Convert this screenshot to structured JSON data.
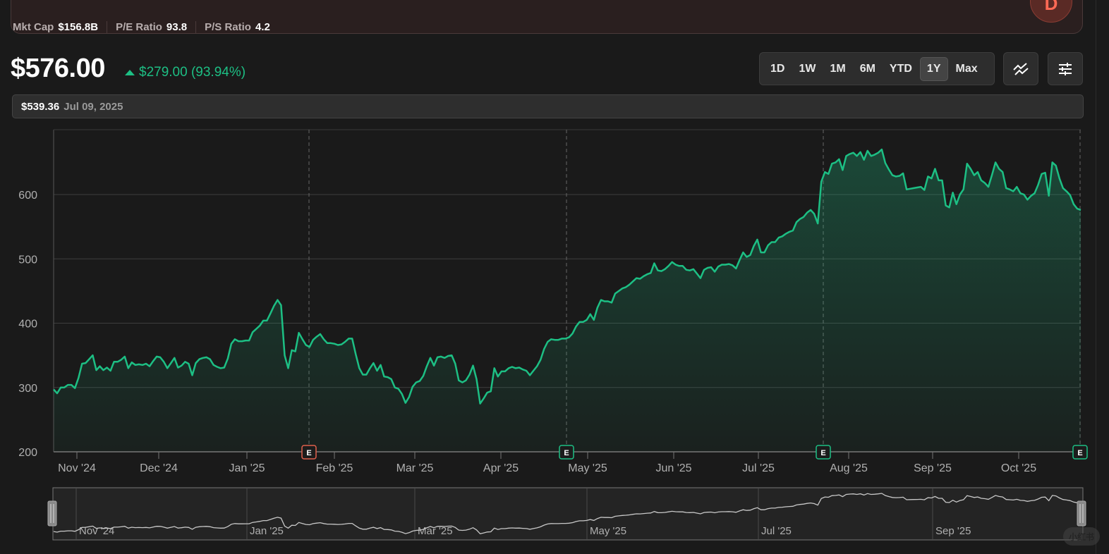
{
  "stats": {
    "items": [
      {
        "label": "Mkt Cap",
        "value": "$156.8B"
      },
      {
        "label": "P/E Ratio",
        "value": "93.8"
      },
      {
        "label": "P/S Ratio",
        "value": "4.2"
      }
    ],
    "rating_letter": "D",
    "rating_color": "#ff6a55"
  },
  "quote": {
    "price": "$576.00",
    "change": "$279.00 (93.94%)",
    "direction": "up",
    "up_color": "#1dbf84"
  },
  "range": {
    "options": [
      "1D",
      "1W",
      "1M",
      "6M",
      "YTD",
      "1Y",
      "Max"
    ],
    "selected": "1Y"
  },
  "toolbar": {
    "compare_icon": "trend-lines-icon",
    "settings_icon": "sliders-icon"
  },
  "hover": {
    "price": "$539.36",
    "date": "Jul 09, 2025"
  },
  "chart_data": {
    "type": "area",
    "title": "",
    "xlabel": "",
    "ylabel": "",
    "ylim": [
      200,
      700
    ],
    "yticks": [
      200,
      300,
      400,
      500,
      600
    ],
    "xticks": [
      "Nov '24",
      "Dec '24",
      "Jan '25",
      "Feb '25",
      "Mar '25",
      "Apr '25",
      "May '25",
      "Jun '25",
      "Jul '25",
      "Aug '25",
      "Sep '25",
      "Oct '25"
    ],
    "grid": true,
    "line_color": "#1dbf84",
    "earnings_markers": [
      {
        "label": "E",
        "date": "late Jan '25",
        "result": "miss",
        "color": "#e0604c"
      },
      {
        "label": "E",
        "date": "late Apr '25",
        "result": "beat",
        "color": "#1dbf84"
      },
      {
        "label": "E",
        "date": "late Jul '25",
        "result": "beat",
        "color": "#1dbf84"
      },
      {
        "label": "E",
        "date": "late Oct '25",
        "result": "beat",
        "color": "#1dbf84"
      }
    ],
    "series": [
      {
        "name": "Price",
        "values": [
          297,
          291,
          300,
          300,
          304,
          304,
          299,
          315,
          337,
          338,
          344,
          350,
          327,
          333,
          327,
          331,
          326,
          340,
          340,
          343,
          348,
          330,
          339,
          335,
          336,
          335,
          337,
          333,
          341,
          348,
          347,
          340,
          330,
          338,
          346,
          331,
          334,
          340,
          337,
          319,
          338,
          344,
          346,
          347,
          344,
          335,
          332,
          330,
          331,
          345,
          368,
          375,
          372,
          372,
          373,
          373,
          386,
          391,
          396,
          404,
          404,
          415,
          427,
          436,
          428,
          350,
          330,
          358,
          356,
          385,
          375,
          366,
          363,
          374,
          379,
          383,
          375,
          369,
          369,
          368,
          366,
          367,
          371,
          376,
          376,
          352,
          330,
          320,
          320,
          330,
          338,
          326,
          335,
          317,
          316,
          313,
          300,
          298,
          290,
          276,
          285,
          301,
          308,
          310,
          318,
          333,
          346,
          334,
          347,
          348,
          346,
          349,
          350,
          337,
          311,
          308,
          311,
          320,
          334,
          313,
          275,
          283,
          292,
          294,
          330,
          317,
          325,
          325,
          330,
          332,
          330,
          331,
          328,
          326,
          319,
          326,
          333,
          343,
          360,
          371,
          375,
          374,
          374,
          376,
          376,
          378,
          384,
          395,
          402,
          402,
          405,
          414,
          405,
          424,
          436,
          434,
          434,
          432,
          446,
          450,
          454,
          456,
          460,
          465,
          470,
          469,
          473,
          476,
          478,
          493,
          482,
          481,
          484,
          489,
          495,
          491,
          489,
          489,
          483,
          482,
          484,
          477,
          470,
          483,
          486,
          487,
          480,
          488,
          491,
          491,
          492,
          490,
          485,
          498,
          510,
          503,
          506,
          520,
          530,
          510,
          510,
          521,
          526,
          526,
          533,
          535,
          539,
          542,
          544,
          557,
          562,
          565,
          572,
          576,
          570,
          555,
          620,
          635,
          632,
          648,
          650,
          655,
          638,
          660,
          663,
          665,
          660,
          666,
          654,
          668,
          660,
          662,
          665,
          670,
          649,
          639,
          630,
          628,
          629,
          633,
          608,
          609,
          610,
          611,
          612,
          607,
          628,
          625,
          640,
          622,
          622,
          583,
          580,
          603,
          585,
          600,
          608,
          648,
          640,
          630,
          635,
          622,
          618,
          612,
          630,
          650,
          640,
          635,
          610,
          608,
          605,
          612,
          602,
          600,
          592,
          598,
          602,
          615,
          632,
          634,
          598,
          650,
          645,
          625,
          610,
          605,
          599,
          585,
          578,
          576
        ]
      }
    ]
  },
  "navigator": {
    "labels": [
      "Nov '24",
      "Jan '25",
      "Mar '25",
      "May '25",
      "Jul '25",
      "Sep '25"
    ]
  },
  "watermark": "小红书"
}
